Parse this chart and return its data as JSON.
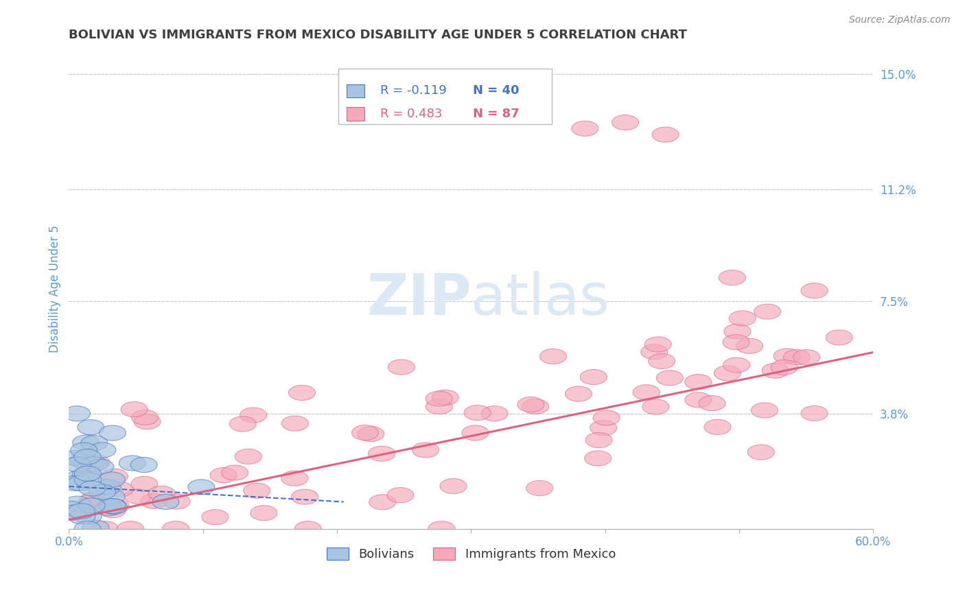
{
  "title": "BOLIVIAN VS IMMIGRANTS FROM MEXICO DISABILITY AGE UNDER 5 CORRELATION CHART",
  "source": "Source: ZipAtlas.com",
  "ylabel": "Disability Age Under 5",
  "xlim": [
    0.0,
    0.6
  ],
  "ylim": [
    0.0,
    0.158
  ],
  "yticks": [
    0.0,
    0.038,
    0.075,
    0.112,
    0.15
  ],
  "ytick_labels": [
    "",
    "3.8%",
    "7.5%",
    "11.2%",
    "15.0%"
  ],
  "xticks": [
    0.0,
    0.1,
    0.2,
    0.3,
    0.4,
    0.5,
    0.6
  ],
  "xtick_labels": [
    "0.0%",
    "",
    "",
    "",
    "",
    "",
    "60.0%"
  ],
  "bolivians_R": -0.119,
  "bolivians_N": 40,
  "mexico_R": 0.483,
  "mexico_N": 87,
  "blue_fill": "#a8c4e0",
  "blue_edge": "#4472c4",
  "pink_fill": "#f4a8b8",
  "pink_edge": "#e06080",
  "blue_line": "#4472c4",
  "pink_line": "#e06080",
  "title_color": "#404040",
  "tick_color": "#5b9bd5",
  "watermark_color": "#dde8f5",
  "bg_color": "#ffffff",
  "grid_color": "#c8c8c8",
  "legend_blue": "#4472c4",
  "legend_pink": "#e06080",
  "legend_text_dark": "#333333",
  "source_color": "#888888"
}
